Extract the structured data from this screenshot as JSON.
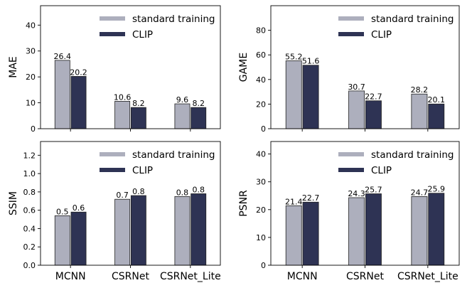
{
  "colors": {
    "standard": "#adafbd",
    "clip": "#2e3354",
    "edge": "#222222"
  },
  "chart_data": [
    {
      "type": "bar",
      "categories": [
        "MCNN",
        "CSRNet",
        "CSRNet_Lite"
      ],
      "series": [
        {
          "name": "standard training",
          "values": [
            26.4,
            10.6,
            9.6
          ],
          "labels": [
            "26.4",
            "10.6",
            "9.6"
          ]
        },
        {
          "name": "CLIP",
          "values": [
            20.2,
            8.2,
            8.2
          ],
          "labels": [
            "20.2",
            "8.2",
            "8.2"
          ]
        }
      ],
      "ylabel": "MAE",
      "ylim": [
        0,
        47.5
      ],
      "yticks": [
        0,
        10,
        20,
        30,
        40
      ],
      "ytick_labels": [
        "0",
        "10",
        "20",
        "30",
        "40"
      ],
      "show_xticklabels": false,
      "legend": "top-right",
      "grid": false
    },
    {
      "type": "bar",
      "categories": [
        "MCNN",
        "CSRNet",
        "CSRNet_Lite"
      ],
      "series": [
        {
          "name": "standard training",
          "values": [
            55.2,
            30.7,
            28.2
          ],
          "labels": [
            "55.2",
            "30.7",
            "28.2"
          ]
        },
        {
          "name": "CLIP",
          "values": [
            51.6,
            22.7,
            20.1
          ],
          "labels": [
            "51.6",
            "22.7",
            "20.1"
          ]
        }
      ],
      "ylabel": "GAME",
      "ylim": [
        0,
        100
      ],
      "yticks": [
        0,
        20,
        40,
        60,
        80
      ],
      "ytick_labels": [
        "0",
        "20",
        "40",
        "60",
        "80"
      ],
      "show_xticklabels": false,
      "legend": "top-right",
      "grid": false
    },
    {
      "type": "bar",
      "categories": [
        "MCNN",
        "CSRNet",
        "CSRNet_Lite"
      ],
      "series": [
        {
          "name": "standard training",
          "values": [
            0.54,
            0.72,
            0.75
          ],
          "labels": [
            "0.5",
            "0.7",
            "0.8"
          ]
        },
        {
          "name": "CLIP",
          "values": [
            0.58,
            0.76,
            0.78
          ],
          "labels": [
            "0.6",
            "0.8",
            "0.8"
          ]
        }
      ],
      "ylabel": "SSIM",
      "ylim": [
        0,
        1.35
      ],
      "yticks": [
        0,
        0.2,
        0.4,
        0.6,
        0.8,
        1.0,
        1.2
      ],
      "ytick_labels": [
        "0.0",
        "0.2",
        "0.4",
        "0.6",
        "0.8",
        "1.0",
        "1.2"
      ],
      "show_xticklabels": true,
      "legend": "top-right",
      "grid": false
    },
    {
      "type": "bar",
      "categories": [
        "MCNN",
        "CSRNet",
        "CSRNet_Lite"
      ],
      "series": [
        {
          "name": "standard training",
          "values": [
            21.4,
            24.3,
            24.7
          ],
          "labels": [
            "21.4",
            "24.3",
            "24.7"
          ]
        },
        {
          "name": "CLIP",
          "values": [
            22.7,
            25.7,
            25.9
          ],
          "labels": [
            "22.7",
            "25.7",
            "25.9"
          ]
        }
      ],
      "ylabel": "PSNR",
      "ylim": [
        0,
        44.5
      ],
      "yticks": [
        0,
        10,
        20,
        30,
        40
      ],
      "ytick_labels": [
        "0",
        "10",
        "20",
        "30",
        "40"
      ],
      "show_xticklabels": true,
      "legend": "top-right",
      "grid": false
    }
  ]
}
